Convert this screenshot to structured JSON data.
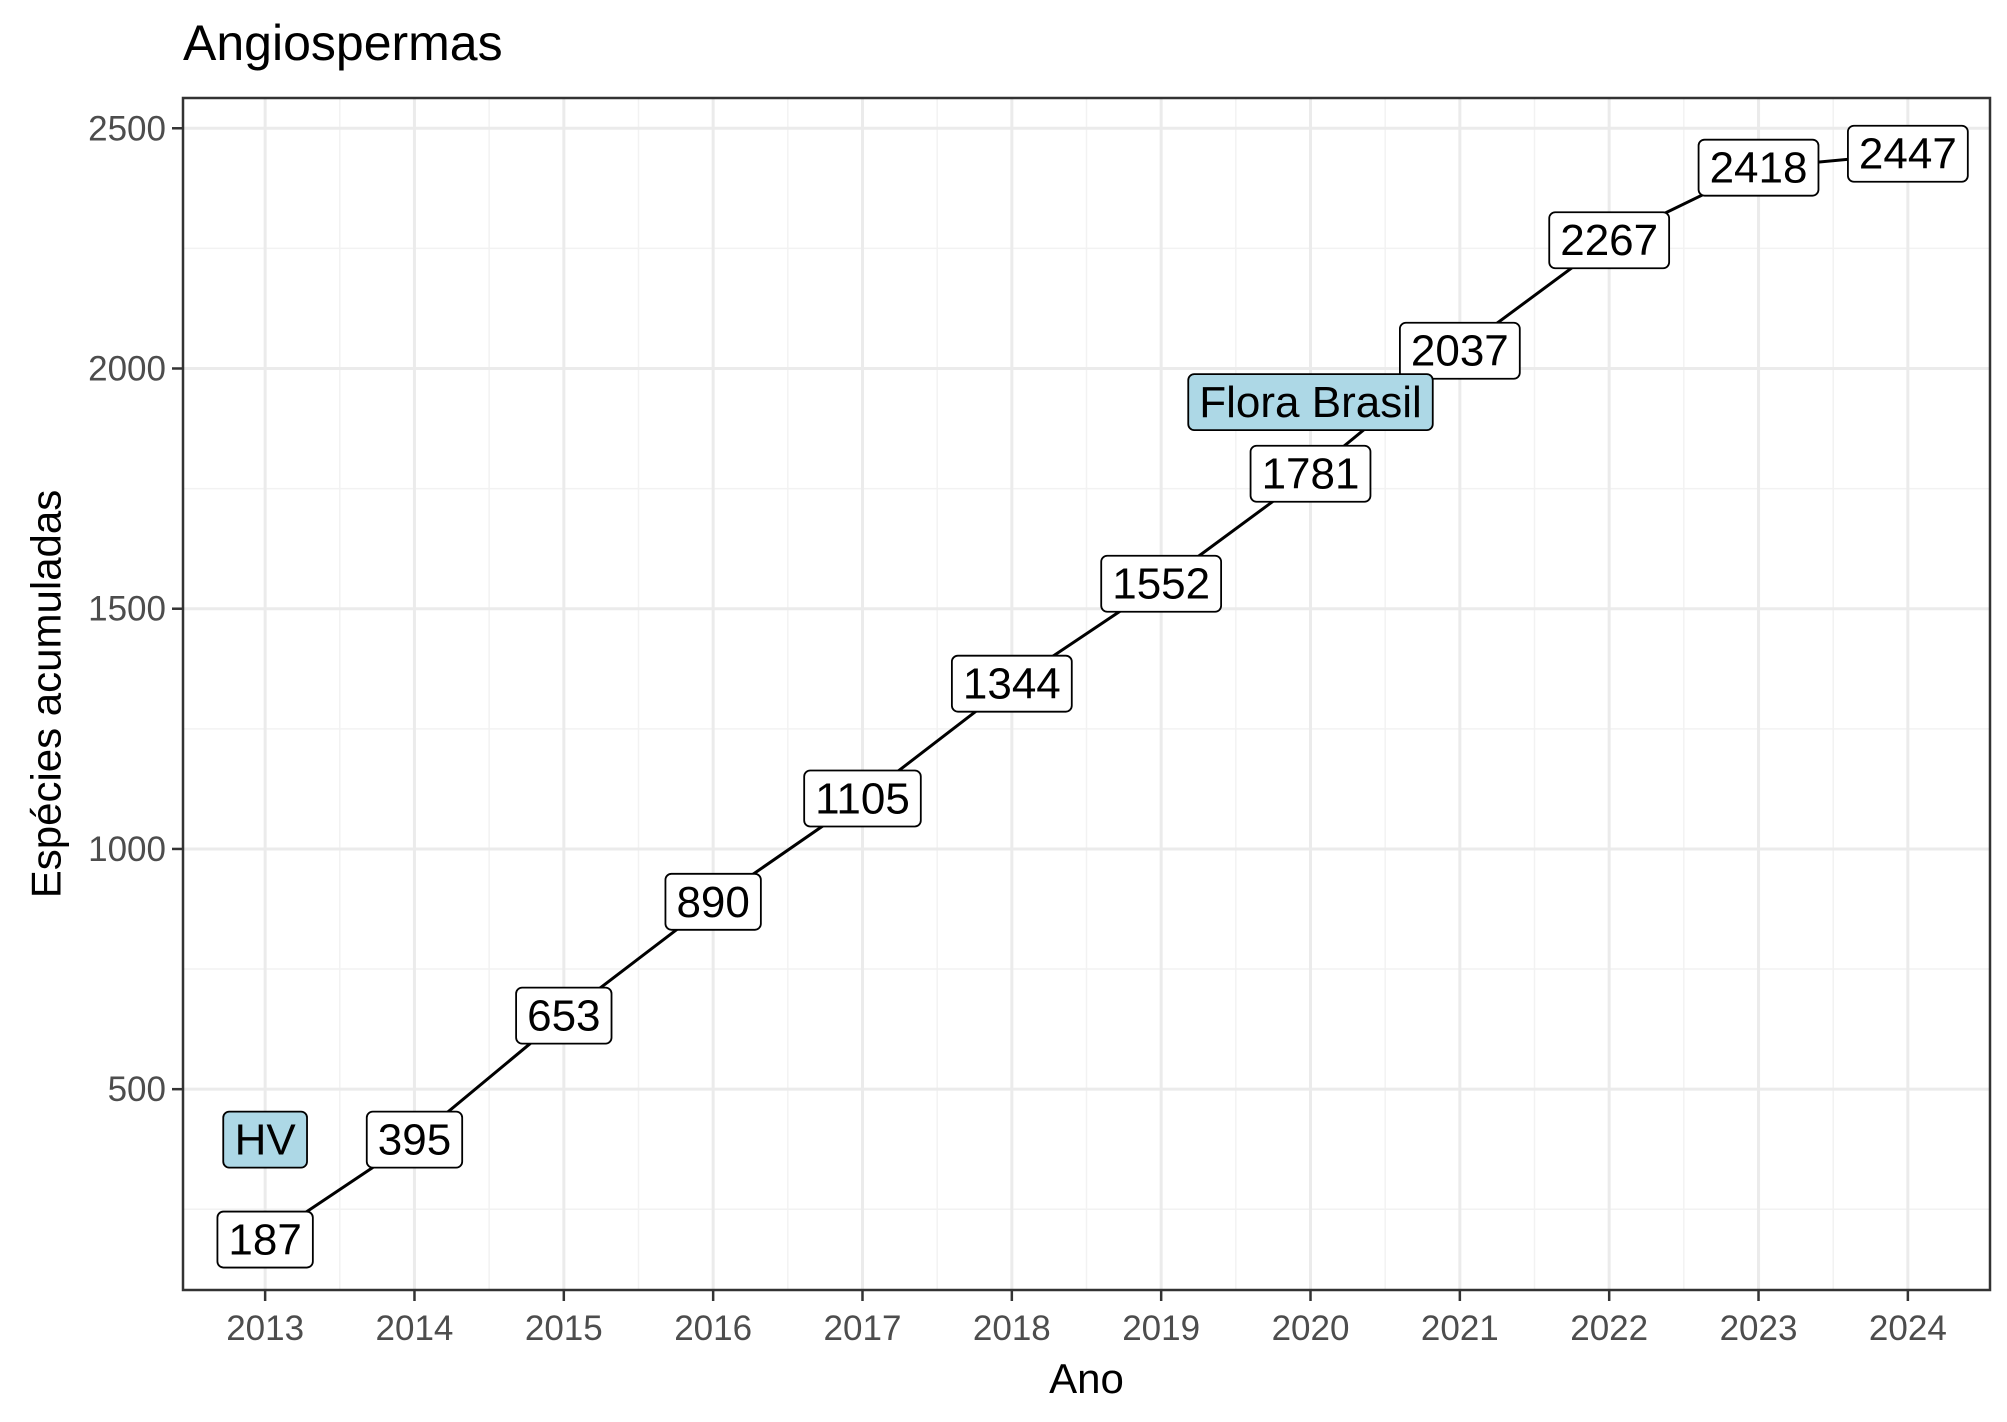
{
  "chart_data": {
    "type": "line",
    "title": "Angiospermas",
    "xlabel": "Ano",
    "ylabel": "Espécies acumuladas",
    "x": [
      2013,
      2014,
      2015,
      2016,
      2017,
      2018,
      2019,
      2020,
      2021,
      2022,
      2023,
      2024
    ],
    "series": [
      {
        "values": [
          187,
          395,
          653,
          890,
          1105,
          1344,
          1552,
          1781,
          2037,
          2267,
          2418,
          2447
        ],
        "color": "#000000"
      }
    ],
    "xlim": [
      2012.45,
      2024.55
    ],
    "ylim": [
      82,
      2563
    ],
    "xticks": [
      2013,
      2014,
      2015,
      2016,
      2017,
      2018,
      2019,
      2020,
      2021,
      2022,
      2023,
      2024
    ],
    "yticks": [
      500,
      1000,
      1500,
      2000,
      2500
    ],
    "grid": true,
    "annotations": [
      {
        "text": "HV",
        "x": 2013,
        "y": 395,
        "fill": "#add8e6"
      },
      {
        "text": "Flora Brasil",
        "x": 2020,
        "y": 1930,
        "fill": "#add8e6"
      }
    ],
    "label_fill": "#ffffff"
  }
}
